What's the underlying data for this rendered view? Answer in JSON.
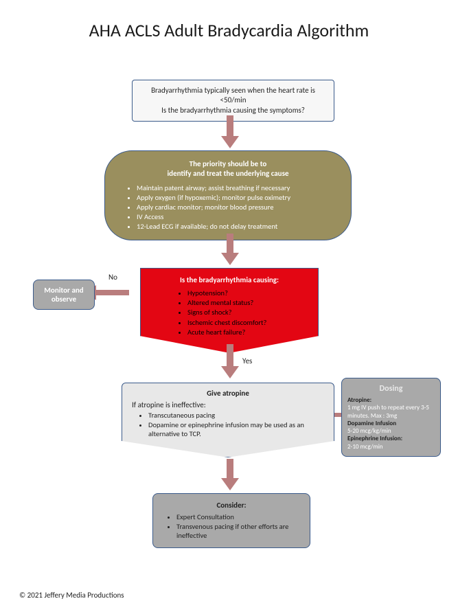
{
  "title": "AHA ACLS Adult Bradycardia Algorithm",
  "colors": {
    "border": "#3a5a8a",
    "arrow": "#b97d7d",
    "olive": "#9a8f5e",
    "red": "#e30613",
    "grayLight": "#e8e8e8",
    "grayMed": "#a9a9a9"
  },
  "box1": {
    "line1": "Bradyarrhythmia typically seen when the heart rate is <50/min",
    "line2": "Is the bradyarrhythmia causing the symptoms?"
  },
  "box2": {
    "header1": "The priority should be to",
    "header2": "identify and treat the underlying cause",
    "items": [
      "Maintain patent airway; assist breathing if necessary",
      "Apply oxygen (if hypoxemic); monitor pulse oximetry",
      "Apply cardiac monitor;  monitor blood pressure",
      "IV Access",
      "12-Lead ECG if available;  do not delay treatment"
    ]
  },
  "box3": {
    "header": "Is the bradyarrhythmia causing:",
    "items": [
      "Hypotension?",
      "Altered mental status?",
      "Signs of shock?",
      "Ischemic chest  discomfort?",
      "Acute heart failure?"
    ]
  },
  "labels": {
    "no": "No",
    "yes": "Yes"
  },
  "monitor": {
    "line1": "Monitor and",
    "line2": "observe"
  },
  "box4": {
    "header": "Give atropine",
    "sub": "If atropine is ineffective:",
    "items": [
      "Transcutaneous pacing",
      "Dopamine or epinephrine infusion may be used as an alternative to TCP."
    ]
  },
  "dosing": {
    "header": "Dosing",
    "d1_name": "Atropine:",
    "d1_text": "1 mg IV push to repeat every 3-5 minutes.  Max : 3mg",
    "d2_name": "Dopamine Infusion",
    "d2_text": "5-20 mcg/kg/min",
    "d3_name": "Epinephrine Infusion:",
    "d3_text": "2-10 mcg/min"
  },
  "box5": {
    "header": "Consider:",
    "items": [
      "Expert Consultation",
      "Transvenous pacing if other efforts are ineffective"
    ]
  },
  "copyright": "© 2021   Jeffery Media Productions"
}
